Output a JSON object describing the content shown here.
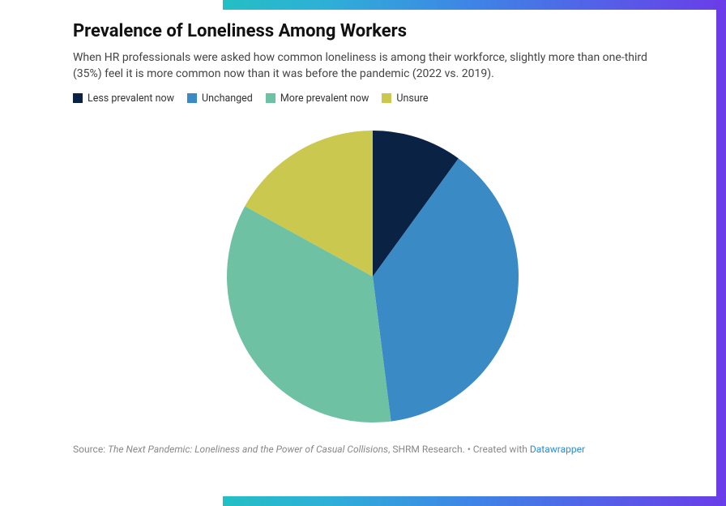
{
  "title": "Prevalence of Loneliness Among Workers",
  "subtitle": "When HR professionals were asked how common loneliness is among their workforce, slightly more than one-third (35%) feel it is more common now than it was before the pandemic (2022 vs. 2019).",
  "chart": {
    "type": "pie",
    "radius": 180,
    "background_color": "#ffffff",
    "start_angle_deg": 0,
    "slices": [
      {
        "key": "less",
        "label": "Less prevalent now",
        "short": "Less\nprevalent\nnow",
        "pct": 10,
        "color": "#0a2344",
        "label_color": "#ffffff",
        "label_r": 0.62
      },
      {
        "key": "unchanged",
        "label": "Unchanged",
        "short": "Unchanged",
        "pct": 38,
        "color": "#3a8ac6",
        "label_color": "#111111",
        "label_r": 0.58
      },
      {
        "key": "more",
        "label": "More prevalent now",
        "short": "More prevalent now",
        "pct": 35,
        "color": "#6fc1a4",
        "label_color": "#111111",
        "label_r": 0.6
      },
      {
        "key": "unsure",
        "label": "Unsure",
        "short": "Unsure",
        "pct": 17,
        "color": "#cbc850",
        "label_color": "#111111",
        "label_r": 0.58
      }
    ],
    "legend_order": [
      "less",
      "unchanged",
      "more",
      "unsure"
    ],
    "legend_fontsize": 12.5,
    "label_fontsize": 12.5
  },
  "source": {
    "prefix": "Source: ",
    "title_italic": "The Next Pandemic: Loneliness and the Power of Casual Collisions",
    "middle": ", SHRM Research. • Created with ",
    "link_text": "Datawrapper"
  },
  "frame": {
    "bar_thickness": 12,
    "gradient_stops": [
      "#23bfc4",
      "#2eb0d6",
      "#3e84e6",
      "#6a3de8"
    ]
  }
}
